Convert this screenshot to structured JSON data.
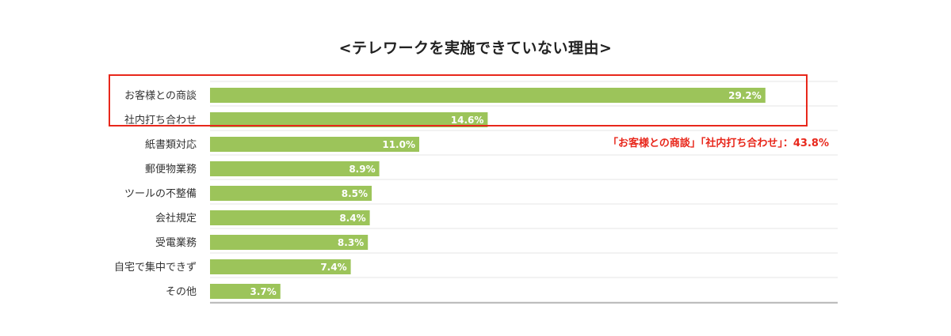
{
  "chart_data": {
    "type": "bar",
    "orientation": "horizontal",
    "title": "<テレワークを実施できていない理由>",
    "categories": [
      "お客様との商談",
      "社内打ち合わせ",
      "紙書類対応",
      "郵便物業務",
      "ツールの不整備",
      "会社規定",
      "受電業務",
      "自宅で集中できず",
      "その他"
    ],
    "values": [
      29.2,
      14.6,
      11.0,
      8.9,
      8.5,
      8.4,
      8.3,
      7.4,
      3.7
    ],
    "value_labels": [
      "29.2%",
      "14.6%",
      "11.0%",
      "8.9%",
      "8.5%",
      "8.4%",
      "8.3%",
      "7.4%",
      "3.7%"
    ],
    "xlim": [
      0,
      33
    ],
    "grid": true,
    "highlight": {
      "categories": [
        "お客様との商談",
        "社内打ち合わせ"
      ],
      "color": "#e8271b"
    },
    "annotation": "「お客様との商談」「社内打ち合わせ」：43.8%",
    "bar_color": "#9cc45a"
  }
}
